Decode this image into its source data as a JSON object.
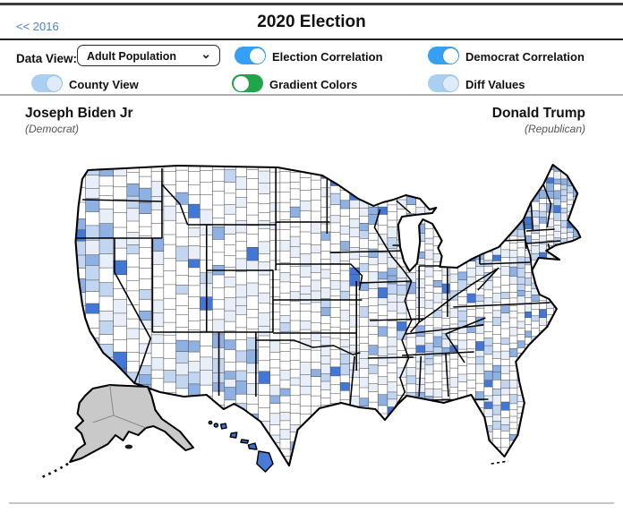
{
  "header": {
    "back_link": "<< 2016",
    "title": "2020 Election"
  },
  "controls": {
    "data_view": {
      "label": "Data View:",
      "selected": "Adult Population"
    },
    "toggles": [
      {
        "label": "Election Correlation",
        "state": "on",
        "color": "#36a0f5",
        "knob": "right"
      },
      {
        "label": "Democrat Correlation",
        "state": "on",
        "color": "#36a0f5",
        "knob": "right"
      },
      {
        "label": "County View",
        "state": "on",
        "color": "#a9cff1",
        "knob": "right"
      },
      {
        "label": "Gradient Colors",
        "state": "off",
        "color": "#1fa64a",
        "knob": "left"
      },
      {
        "label": "Diff Values",
        "state": "on",
        "color": "#a9cff1",
        "knob": "right"
      }
    ]
  },
  "candidates": {
    "left": {
      "name": "Joseph Biden Jr",
      "party": "(Democrat)"
    },
    "right": {
      "name": "Donald Trump",
      "party": "(Republican)"
    }
  },
  "map": {
    "description": "US county-level choropleth, white-to-blue shading of Democrat-correlated adult population values; Alaska shown gray (no data), Hawaii islands blue",
    "palette": {
      "white": "#ffffff",
      "pale": "#e9eff9",
      "light": "#c3d6f1",
      "med": "#8fb0e2",
      "strong": "#4377d6"
    },
    "county_border_color": "#464646",
    "state_border_color": "#000000",
    "outline_color": "#000000",
    "no_data_fill": "#c9c9c9",
    "hawaii_fill": "#4a7bd4",
    "hawaii_small_fill": "#3f6fd0"
  },
  "colors": {
    "link": "#4a7edb",
    "toggle_on_blue": "#36a0f5",
    "toggle_light_blue": "#a9cff1",
    "toggle_green": "#1fa64a"
  }
}
